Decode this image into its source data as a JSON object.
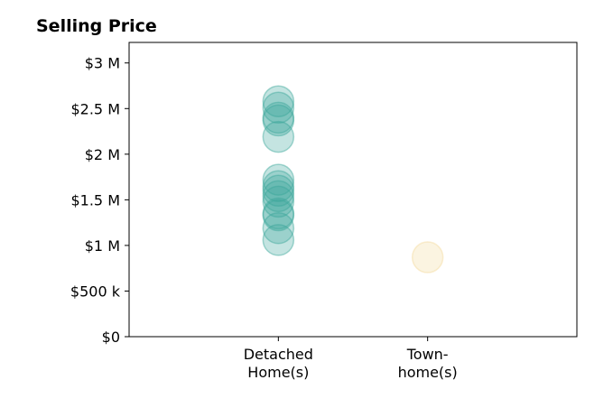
{
  "chart_data": {
    "type": "scatter",
    "title": "Selling Price",
    "xlabel": "",
    "ylabel": "",
    "ylim": [
      0,
      3225000
    ],
    "xlim": [
      -1,
      2
    ],
    "y_ticks": [
      {
        "value": 0,
        "label": "$0"
      },
      {
        "value": 500000,
        "label": "$500 k"
      },
      {
        "value": 1000000,
        "label": "$1 M"
      },
      {
        "value": 1500000,
        "label": "$1.5 M"
      },
      {
        "value": 2000000,
        "label": "$2 M"
      },
      {
        "value": 2500000,
        "label": "$2.5 M"
      },
      {
        "value": 3000000,
        "label": "$3 M"
      }
    ],
    "categories": [
      {
        "label_lines": [
          "Detached",
          "Home(s)"
        ]
      },
      {
        "label_lines": [
          "Town-",
          "home(s)"
        ]
      }
    ],
    "grid": false,
    "series": [
      {
        "category_index": 0,
        "color": "#3aa79a",
        "values": [
          1060000,
          1190000,
          1330000,
          1350000,
          1480000,
          1540000,
          1600000,
          1650000,
          1720000,
          2190000,
          2370000,
          2400000,
          2510000,
          2580000
        ]
      },
      {
        "category_index": 1,
        "color": "#f3d99c",
        "values": [
          870000
        ]
      }
    ]
  }
}
